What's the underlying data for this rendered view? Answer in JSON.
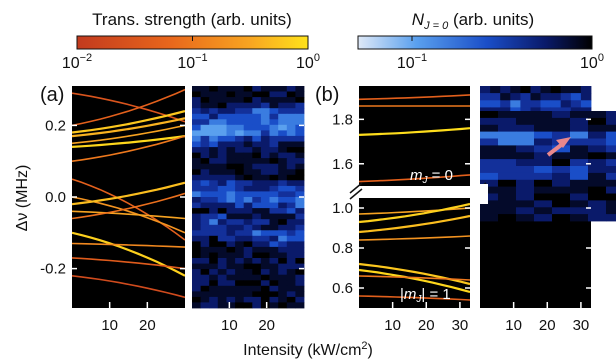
{
  "colorbars": {
    "left": {
      "title": "Trans. strength (arb. units)",
      "ticks": [
        {
          "base": "10",
          "exp": "−2",
          "value": 0.01
        },
        {
          "base": "10",
          "exp": "−1",
          "value": 0.1
        },
        {
          "base": "10",
          "exp": "0",
          "value": 1
        }
      ],
      "colors": [
        "#c23a1e",
        "#e8661c",
        "#f8a521",
        "#ffe31b"
      ]
    },
    "right": {
      "title_symbol": "N",
      "title_sub": "J = 0",
      "title_rest": " (arb. units)",
      "ticks": [
        {
          "base": "10",
          "exp": "−1",
          "value": 0.1
        },
        {
          "base": "10",
          "exp": "0",
          "value": 1
        }
      ],
      "colors": [
        "#dfe9f7",
        "#5aa0ee",
        "#1a4ec8",
        "#0a1a6a",
        "#000000"
      ]
    }
  },
  "panels": {
    "a": {
      "label": "(a)"
    },
    "b": {
      "label": "(b)",
      "top_label": "mJ = 0",
      "bottom_label": "|mJ| = 1"
    }
  },
  "axes": {
    "ylabel": "Δν (MHz)",
    "xlabel": "Intensity (kW/cm²)",
    "a_yticks": [
      "0.2",
      "0.0",
      "-0.2"
    ],
    "a_xticks": [
      "10",
      "20"
    ],
    "b_top_yticks": [
      "1.8",
      "1.6"
    ],
    "b_bottom_yticks": [
      "1.0",
      "0.8",
      "0.6"
    ],
    "b_xticks": [
      "10",
      "20",
      "30"
    ]
  },
  "chart_data": [
    {
      "type": "line",
      "panel": "a-left",
      "description_source": "transition frequency shift vs intensity, color = transition strength",
      "xlim": [
        0,
        30
      ],
      "ylim": [
        -0.31,
        0.31
      ],
      "xlabel": "Intensity (kW/cm²)",
      "ylabel": "Δν (MHz)",
      "series": [
        {
          "x": [
            0,
            30
          ],
          "y": [
            0.29,
            0.21
          ],
          "strength": 0.03
        },
        {
          "x": [
            0,
            30
          ],
          "y": [
            0.2,
            0.3
          ],
          "strength": 0.05
        },
        {
          "x": [
            0,
            30
          ],
          "y": [
            0.18,
            0.24
          ],
          "strength": 0.6
        },
        {
          "x": [
            0,
            30
          ],
          "y": [
            0.17,
            0.22
          ],
          "strength": 0.4
        },
        {
          "x": [
            0,
            30
          ],
          "y": [
            0.15,
            0.2
          ],
          "strength": 0.3
        },
        {
          "x": [
            0,
            30
          ],
          "y": [
            0.14,
            0.17
          ],
          "strength": 0.8
        },
        {
          "x": [
            0,
            30
          ],
          "y": [
            0.1,
            0.17
          ],
          "strength": 0.1
        },
        {
          "x": [
            0,
            30
          ],
          "y": [
            0.05,
            -0.12
          ],
          "strength": 0.05
        },
        {
          "x": [
            0,
            30
          ],
          "y": [
            0.0,
            -0.1
          ],
          "strength": 0.2
        },
        {
          "x": [
            0,
            30
          ],
          "y": [
            -0.02,
            0.04
          ],
          "strength": 0.5
        },
        {
          "x": [
            0,
            30
          ],
          "y": [
            -0.04,
            -0.06
          ],
          "strength": 0.3
        },
        {
          "x": [
            0,
            30
          ],
          "y": [
            -0.06,
            0.01
          ],
          "strength": 0.08
        },
        {
          "x": [
            0,
            30
          ],
          "y": [
            -0.1,
            -0.22
          ],
          "strength": 0.7
        },
        {
          "x": [
            0,
            30
          ],
          "y": [
            -0.13,
            -0.14
          ],
          "strength": 0.15
        },
        {
          "x": [
            0,
            30
          ],
          "y": [
            -0.17,
            -0.2
          ],
          "strength": 0.04
        },
        {
          "x": [
            0,
            30
          ],
          "y": [
            -0.22,
            -0.28
          ],
          "strength": 0.02
        }
      ]
    },
    {
      "type": "heatmap",
      "panel": "a-right",
      "xlim": [
        0,
        30
      ],
      "ylim": [
        -0.31,
        0.31
      ],
      "note": "N_J=0 population vs intensity and detuning; bright band near 0.2 and around 0.0 to -0.05"
    },
    {
      "type": "line",
      "panel": "b-left-top",
      "label": "mJ = 0",
      "xlim": [
        0,
        33
      ],
      "ylim": [
        1.5,
        1.95
      ],
      "series": [
        {
          "x": [
            0,
            33
          ],
          "y": [
            1.89,
            1.91
          ],
          "strength": 0.05
        },
        {
          "x": [
            0,
            33
          ],
          "y": [
            1.86,
            1.86
          ],
          "strength": 0.1
        },
        {
          "x": [
            0,
            33
          ],
          "y": [
            1.73,
            1.76
          ],
          "strength": 0.9
        },
        {
          "x": [
            0,
            33
          ],
          "y": [
            1.52,
            1.55
          ],
          "strength": 0.05
        }
      ]
    },
    {
      "type": "line",
      "panel": "b-left-bottom",
      "label": "|mJ| = 1",
      "xlim": [
        0,
        33
      ],
      "ylim": [
        0.5,
        1.05
      ],
      "series": [
        {
          "x": [
            0,
            33
          ],
          "y": [
            0.97,
            1.0
          ],
          "strength": 0.3
        },
        {
          "x": [
            0,
            33
          ],
          "y": [
            0.93,
            1.02
          ],
          "strength": 0.7
        },
        {
          "x": [
            0,
            33
          ],
          "y": [
            0.88,
            0.96
          ],
          "strength": 0.5
        },
        {
          "x": [
            0,
            33
          ],
          "y": [
            0.84,
            0.86
          ],
          "strength": 0.2
        },
        {
          "x": [
            0,
            33
          ],
          "y": [
            0.72,
            0.62
          ],
          "strength": 0.6
        },
        {
          "x": [
            0,
            33
          ],
          "y": [
            0.69,
            0.58
          ],
          "strength": 0.8
        },
        {
          "x": [
            0,
            33
          ],
          "y": [
            0.66,
            0.64
          ],
          "strength": 0.1
        },
        {
          "x": [
            0,
            33
          ],
          "y": [
            0.56,
            0.54
          ],
          "strength": 0.05
        }
      ]
    },
    {
      "type": "heatmap",
      "panel": "b-right",
      "xlim": [
        0,
        33
      ],
      "note": "N_J=0 population; bright row near 1.83, arrow marker near intensity 25"
    }
  ]
}
